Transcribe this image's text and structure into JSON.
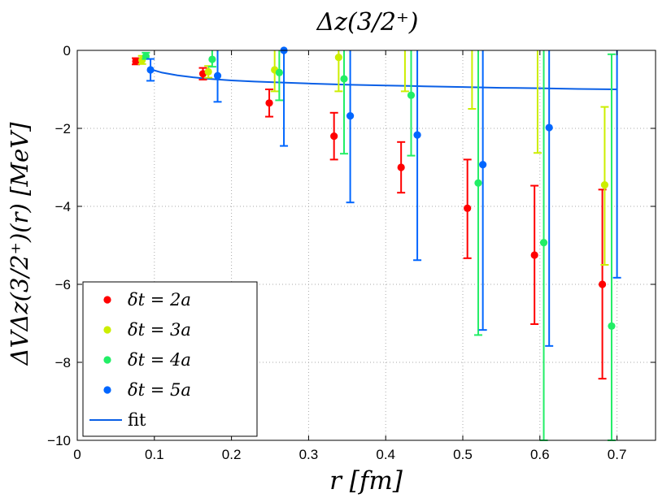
{
  "chart_data": {
    "type": "scatter",
    "title": "Δz(3/2⁺)",
    "xlabel": "r [fm]",
    "ylabel": "ΔVΔz(3/2⁺)(r) [MeV]",
    "xlim": [
      0,
      0.75
    ],
    "ylim": [
      -10,
      0
    ],
    "xticks": [
      "0",
      "0.1",
      "0.2",
      "0.3",
      "0.4",
      "0.5",
      "0.6",
      "0.7"
    ],
    "yticks": [
      "0",
      "−2",
      "−4",
      "−6",
      "−8",
      "−10"
    ],
    "grid": true,
    "legend_position": "bottom-left",
    "series": [
      {
        "name": "δt = 2a",
        "color": "#ff0000",
        "x": [
          0.076,
          0.163,
          0.249,
          0.333,
          0.42,
          0.506,
          0.593,
          0.681
        ],
        "y": [
          -0.28,
          -0.6,
          -1.35,
          -2.2,
          -3.0,
          -4.05,
          -5.25,
          -6.0
        ],
        "err_low": [
          -0.36,
          -0.75,
          -1.7,
          -2.8,
          -3.65,
          -5.33,
          -7.02,
          -8.42
        ],
        "err_high": [
          -0.2,
          -0.45,
          -1.0,
          -1.6,
          -2.35,
          -2.8,
          -3.47,
          -3.57
        ]
      },
      {
        "name": "δt = 3a",
        "color": "#ccee00",
        "x": [
          0.084,
          0.17,
          0.256,
          0.339,
          0.425,
          0.512,
          0.597,
          0.684
        ],
        "y": [
          -0.25,
          -0.55,
          -0.5,
          -0.18,
          null,
          null,
          null,
          -3.45
        ],
        "err_low": [
          -0.35,
          -0.7,
          -1.05,
          -1.05,
          -1.05,
          -1.5,
          -2.63,
          -5.5
        ],
        "err_high": [
          -0.14,
          -0.4,
          0,
          0,
          0,
          0,
          0,
          -1.45
        ]
      },
      {
        "name": "δt = 4a",
        "color": "#22ee66",
        "x": [
          0.089,
          0.175,
          0.262,
          0.346,
          0.433,
          0.52,
          0.605,
          0.693
        ],
        "y": [
          -0.15,
          -0.23,
          -0.57,
          -0.73,
          -1.15,
          -3.4,
          -4.93,
          -7.07
        ],
        "err_low": [
          -0.22,
          -0.42,
          -1.28,
          -2.65,
          -2.7,
          -7.3,
          -10,
          -10
        ],
        "err_high": [
          -0.06,
          0,
          0,
          0,
          0,
          0,
          0,
          -0.1
        ]
      },
      {
        "name": "δt = 5a",
        "color": "#0066ff",
        "x": [
          0.095,
          0.182,
          0.268,
          0.354,
          0.441,
          0.526,
          0.612,
          0.7
        ],
        "y": [
          -0.5,
          -0.65,
          0,
          -1.68,
          -2.17,
          -2.93,
          -1.98,
          null
        ],
        "err_low": [
          -0.78,
          -1.32,
          -2.45,
          -3.9,
          -5.38,
          -7.17,
          -7.58,
          -5.83
        ],
        "err_high": [
          -0.22,
          0,
          0,
          0,
          0,
          0,
          0,
          0
        ]
      }
    ],
    "fit": {
      "name": "fit",
      "color": "#0a5fe6",
      "x": [
        0.094,
        0.11,
        0.13,
        0.15,
        0.17,
        0.2,
        0.23,
        0.27,
        0.3,
        0.35,
        0.4,
        0.45,
        0.5,
        0.55,
        0.6,
        0.65,
        0.7
      ],
      "y": [
        -0.48,
        -0.57,
        -0.64,
        -0.69,
        -0.73,
        -0.77,
        -0.8,
        -0.83,
        -0.85,
        -0.88,
        -0.9,
        -0.92,
        -0.94,
        -0.96,
        -0.97,
        -0.99,
        -1.0
      ]
    }
  }
}
